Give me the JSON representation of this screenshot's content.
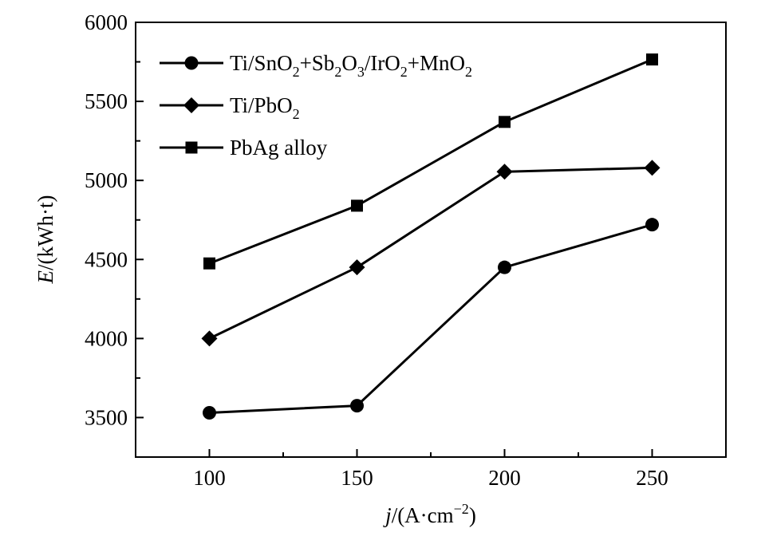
{
  "chart_data": {
    "type": "line",
    "x": [
      100,
      150,
      200,
      250
    ],
    "series": [
      {
        "name": "Ti/SnO2+Sb2O3/IrO2+MnO2",
        "marker": "circle",
        "values": [
          3530,
          3575,
          4450,
          4720
        ]
      },
      {
        "name": "Ti/PbO2",
        "marker": "diamond",
        "values": [
          4000,
          4450,
          5055,
          5080
        ]
      },
      {
        "name": "PbAg alloy",
        "marker": "square",
        "values": [
          4475,
          4840,
          5370,
          5765
        ]
      }
    ],
    "xlabel": "j/(A·cm−2)",
    "ylabel": "E/(kWh·t)",
    "xlim": [
      75,
      275
    ],
    "ylim": [
      3250,
      6000
    ],
    "x_ticks": [
      "100",
      "150",
      "200",
      "250"
    ],
    "y_ticks": [
      "3500",
      "4000",
      "4500",
      "5000",
      "5500",
      "6000"
    ],
    "grid": false,
    "legend_position": "top-left",
    "line_color": "#000000"
  }
}
